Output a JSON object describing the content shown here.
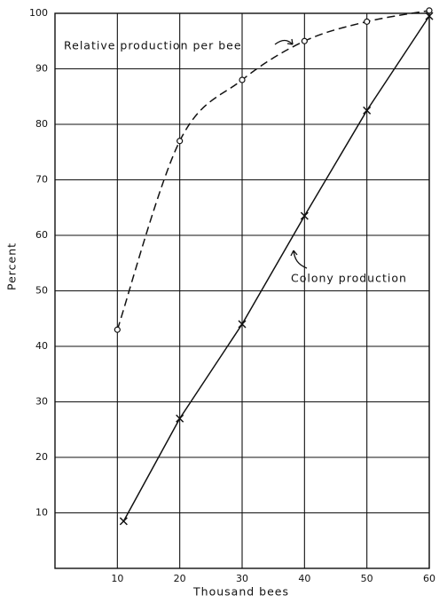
{
  "chart_data": {
    "type": "line",
    "xlabel": "Thousand bees",
    "ylabel": "Percent",
    "series": [
      {
        "name": "Relative production per bee",
        "color": "#111111",
        "dash": true,
        "marker": "circle",
        "x": [
          10,
          20,
          30,
          40,
          50,
          60
        ],
        "values": [
          43,
          77,
          88,
          95,
          98.5,
          100.5
        ]
      },
      {
        "name": "Colony production",
        "color": "#111111",
        "dash": false,
        "marker": "cross",
        "x": [
          11,
          20,
          30,
          40,
          50,
          60
        ],
        "values": [
          8.5,
          27,
          44,
          63.5,
          82.5,
          99.5
        ]
      }
    ],
    "xlim": [
      0,
      60
    ],
    "xticks": [
      10,
      20,
      30,
      40,
      50,
      60
    ],
    "ylim": [
      0,
      100
    ],
    "yticks": [
      10,
      20,
      30,
      40,
      50,
      60,
      70,
      80,
      90,
      100
    ],
    "grid": true
  }
}
